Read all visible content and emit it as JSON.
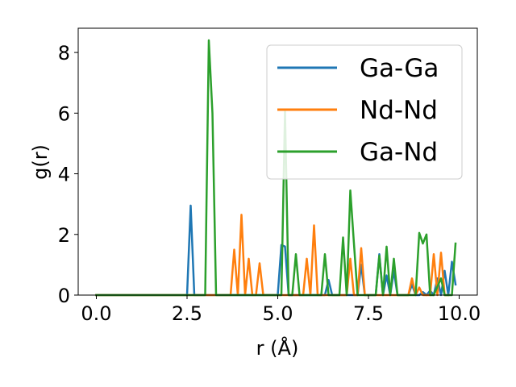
{
  "chart_data": {
    "type": "line",
    "xlabel": "r (Å)",
    "ylabel": "g(r)",
    "xlim": [
      -0.5,
      10.5
    ],
    "ylim": [
      0,
      8.8
    ],
    "xticks": [
      0.0,
      2.5,
      5.0,
      7.5,
      10.0
    ],
    "xtick_labels": [
      "0.0",
      "2.5",
      "5.0",
      "7.5",
      "10.0"
    ],
    "yticks": [
      0,
      2,
      4,
      6,
      8
    ],
    "ytick_labels": [
      "0",
      "2",
      "4",
      "6",
      "8"
    ],
    "grid": false,
    "legend_position": "top-right",
    "series": [
      {
        "name": "Ga-Ga",
        "color": "#1f77b4",
        "x": [
          0.0,
          2.5,
          2.6,
          2.7,
          5.0,
          5.1,
          5.2,
          5.3,
          6.3,
          6.4,
          6.5,
          7.2,
          7.3,
          7.4,
          7.7,
          7.8,
          7.9,
          8.0,
          8.1,
          8.2,
          8.3,
          8.6,
          8.7,
          8.8,
          8.9,
          9.0,
          9.1,
          9.2,
          9.3,
          9.4,
          9.5,
          9.6,
          9.7,
          9.8,
          9.9
        ],
        "y": [
          0.0,
          0.0,
          2.95,
          0.0,
          0.0,
          1.65,
          1.6,
          0.0,
          0.0,
          0.5,
          0.0,
          0.0,
          1.0,
          0.0,
          0.0,
          1.35,
          0.0,
          0.65,
          0.0,
          0.8,
          0.0,
          0.0,
          0.35,
          0.0,
          0.0,
          0.1,
          0.0,
          0.15,
          0.0,
          0.55,
          0.0,
          0.8,
          0.0,
          1.1,
          0.35
        ]
      },
      {
        "name": "Nd-Nd",
        "color": "#ff7f0e",
        "x": [
          0.0,
          3.7,
          3.8,
          3.9,
          4.0,
          4.1,
          4.2,
          4.3,
          4.4,
          4.5,
          4.6,
          5.7,
          5.8,
          5.9,
          6.0,
          6.1,
          6.9,
          7.0,
          7.1,
          7.2,
          7.3,
          7.4,
          8.5,
          8.6,
          8.7,
          8.8,
          8.9,
          9.0,
          9.2,
          9.3,
          9.4,
          9.5,
          9.6,
          9.7
        ],
        "y": [
          0.0,
          0.0,
          1.5,
          0.0,
          2.65,
          0.0,
          1.2,
          0.0,
          0.0,
          1.05,
          0.0,
          0.0,
          1.2,
          0.0,
          2.3,
          0.0,
          0.0,
          1.2,
          0.0,
          0.0,
          1.55,
          0.0,
          0.0,
          0.0,
          0.55,
          0.0,
          0.25,
          0.0,
          0.0,
          1.35,
          0.0,
          1.4,
          0.0,
          0.0
        ]
      },
      {
        "name": "Ga-Nd",
        "color": "#2ca02c",
        "x": [
          0.0,
          3.0,
          3.1,
          3.2,
          3.3,
          5.1,
          5.2,
          5.3,
          5.4,
          5.5,
          5.6,
          6.2,
          6.3,
          6.4,
          6.5,
          6.7,
          6.8,
          6.9,
          7.0,
          7.1,
          7.2,
          7.7,
          7.8,
          7.9,
          8.0,
          8.1,
          8.2,
          8.3,
          8.4,
          8.8,
          8.9,
          9.0,
          9.1,
          9.2,
          9.3,
          9.5,
          9.6,
          9.7,
          9.8,
          9.9
        ],
        "y": [
          0.0,
          0.0,
          8.4,
          6.0,
          0.0,
          0.0,
          6.05,
          0.0,
          0.0,
          1.35,
          0.0,
          0.0,
          1.35,
          0.0,
          0.0,
          0.0,
          1.9,
          0.0,
          3.45,
          1.7,
          0.0,
          0.0,
          1.3,
          0.0,
          1.6,
          0.0,
          1.2,
          0.0,
          0.0,
          0.0,
          2.05,
          1.7,
          2.0,
          0.0,
          0.0,
          0.55,
          0.0,
          0.0,
          0.0,
          1.7
        ]
      }
    ]
  }
}
